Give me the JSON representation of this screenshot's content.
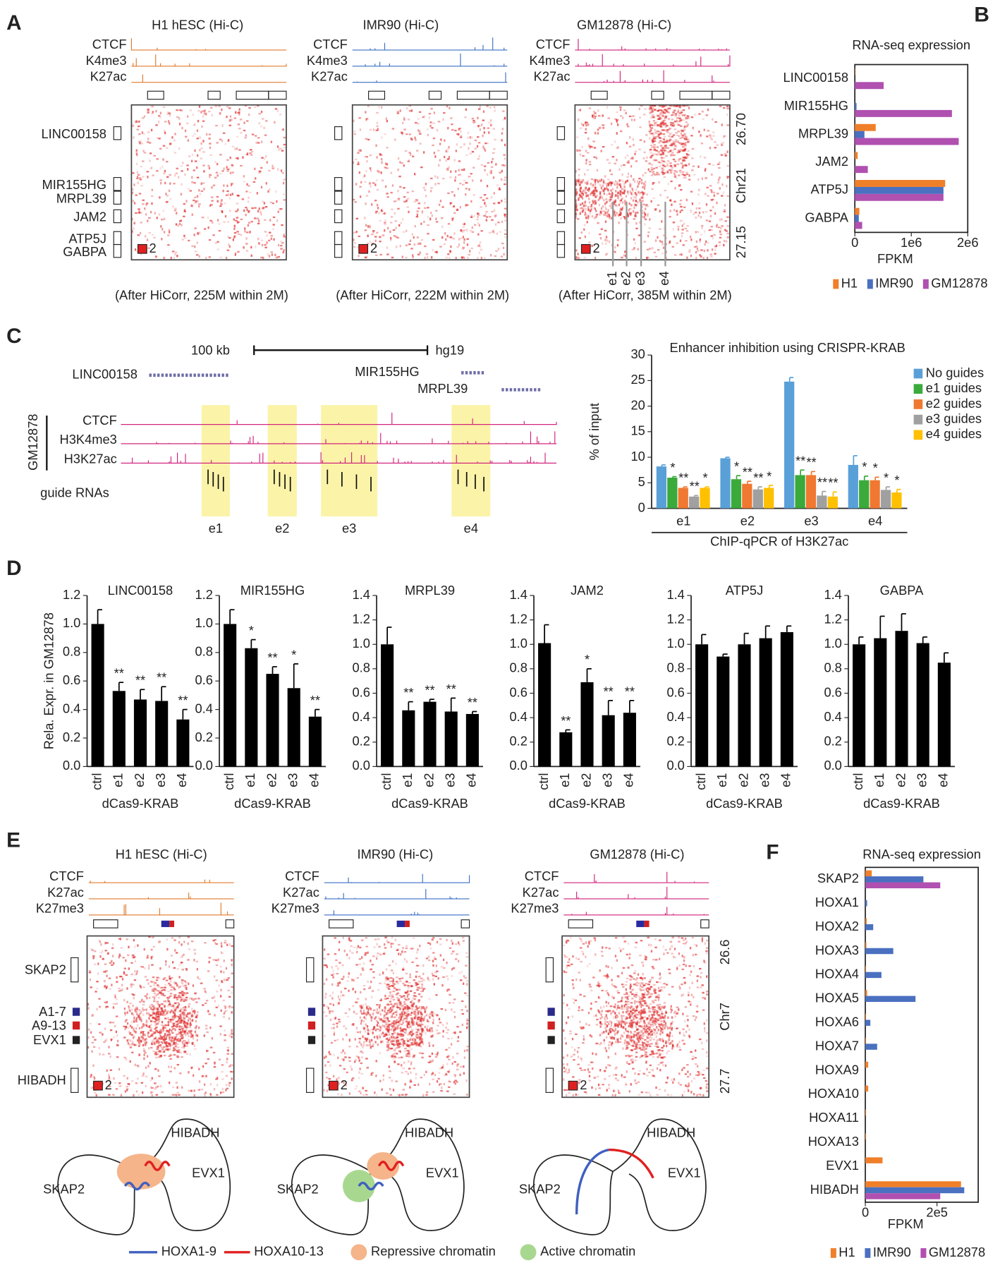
{
  "panel_labels": [
    "A",
    "B",
    "C",
    "D",
    "E",
    "F"
  ],
  "panel_a": {
    "maps": [
      {
        "title": "H1 hESC (Hi-C)",
        "color": "#e07a2c",
        "caption": "(After HiCorr, 225M within 2M)"
      },
      {
        "title": "IMR90 (Hi-C)",
        "color": "#3b6fc4",
        "caption": "(After HiCorr, 222M within 2M)"
      },
      {
        "title": "GM12878 (Hi-C)",
        "color": "#d2227c",
        "caption": "(After HiCorr, 385M within 2M)"
      }
    ],
    "tracks": [
      "CTCF",
      "K4me3",
      "K27ac"
    ],
    "genes": [
      "LINC00158",
      "MIR155HG",
      "MRPL39",
      "JAM2",
      "ATP5J",
      "GABPA"
    ],
    "scale": "2",
    "coords": [
      "26.70",
      "Chr21",
      "27.15"
    ],
    "enhancers": [
      "e1",
      "e2",
      "e3",
      "e4"
    ]
  },
  "panel_c": {
    "scale_bar": "100 kb",
    "assembly": "hg19",
    "genes": [
      "LINC00158",
      "MIR155HG",
      "MRPL39"
    ],
    "cell": "GM12878",
    "tracks": [
      "CTCF",
      "H3K4me3",
      "H3K27ac"
    ],
    "guides": "guide RNAs",
    "enhancers": [
      "e1",
      "e2",
      "e3",
      "e4"
    ]
  },
  "panel_e": {
    "maps": [
      {
        "title": "H1 hESC (Hi-C)",
        "color": "#e07a2c"
      },
      {
        "title": "IMR90 (Hi-C)",
        "color": "#3b6fc4"
      },
      {
        "title": "GM12878 (Hi-C)",
        "color": "#d2227c"
      }
    ],
    "tracks": [
      "CTCF",
      "K27ac",
      "K27me3"
    ],
    "genes": [
      "SKAP2",
      "A1-7",
      "A9-13",
      "EVX1",
      "HIBADH"
    ],
    "scale": "2",
    "coords": [
      "26.6",
      "Chr7",
      "27.7"
    ],
    "models": [
      [
        "HIBADH",
        "EVX1",
        "SKAP2"
      ],
      [
        "HIBADH",
        "EVX1",
        "SKAP2"
      ],
      [
        "HIBADH",
        "EVX1",
        "SKAP2"
      ]
    ],
    "legend": [
      "HOXA1-9",
      "HOXA10-13",
      "Repressive chromatin",
      "Active chromatin"
    ]
  },
  "chart_data": [
    {
      "type": "bar",
      "horizontal": true,
      "title": "RNA-seq expression",
      "xlabel": "FPKM",
      "categories": [
        "LINC00158",
        "MIR155HG",
        "MRPL39",
        "JAM2",
        "ATP5J",
        "GABPA"
      ],
      "series": [
        {
          "name": "H1",
          "color": "#f07f2a",
          "values": [
            5000,
            0,
            370000,
            50000,
            1600000,
            80000
          ]
        },
        {
          "name": "IMR90",
          "color": "#4a70c0",
          "values": [
            0,
            30000,
            170000,
            0,
            1570000,
            70000
          ]
        },
        {
          "name": "GM12878",
          "color": "#b050b0",
          "values": [
            510000,
            1720000,
            1840000,
            230000,
            1570000,
            130000
          ]
        }
      ],
      "xlim": [
        0,
        2000000
      ],
      "xticks": [
        0,
        {
          "value": 1000000,
          "label": "1e6"
        },
        {
          "value": 2000000,
          "label": "2e6"
        }
      ],
      "legend": "bottom"
    },
    {
      "type": "bar",
      "title": "Enhancer inhibition using CRISPR-KRAB",
      "ylabel": "% of input",
      "xlabel": "ChIP-qPCR of H3K27ac",
      "categories": [
        "e1",
        "e2",
        "e3",
        "e4"
      ],
      "series": [
        {
          "name": "No guides",
          "color": "#5aa0d8",
          "values": [
            8.2,
            9.8,
            24.8,
            8.5
          ],
          "errors": [
            0.3,
            0.2,
            0.8,
            1.8
          ],
          "annotations": [
            null,
            null,
            null,
            null
          ]
        },
        {
          "name": "e1 guides",
          "color": "#3aaa3a",
          "values": [
            6.0,
            5.7,
            6.5,
            5.5
          ],
          "errors": [
            0.2,
            0.7,
            1.0,
            0.8
          ],
          "annotations": [
            "*",
            "*",
            "**",
            "*"
          ]
        },
        {
          "name": "e2 guides",
          "color": "#f07830",
          "values": [
            4.0,
            4.8,
            6.5,
            5.5
          ],
          "errors": [
            0.2,
            0.5,
            0.7,
            0.6
          ],
          "annotations": [
            "**",
            "**",
            "**",
            "*"
          ]
        },
        {
          "name": "e3 guides",
          "color": "#a0a0a0",
          "values": [
            2.3,
            3.7,
            2.5,
            3.6
          ],
          "errors": [
            0.2,
            0.5,
            0.8,
            0.6
          ],
          "annotations": [
            "**",
            "**",
            "**",
            "*"
          ]
        },
        {
          "name": "e4 guides",
          "color": "#ffc000",
          "values": [
            4.0,
            4.0,
            2.3,
            3.1
          ],
          "errors": [
            0.2,
            0.5,
            0.9,
            0.6
          ],
          "annotations": [
            "*",
            "*",
            "**",
            "*"
          ]
        }
      ],
      "ylim": [
        0,
        30
      ],
      "yticks": [
        0,
        5,
        10,
        15,
        20,
        25,
        30
      ],
      "legend": "top-right"
    },
    {
      "type": "bar",
      "title": "LINC00158",
      "ylabel": "Rela. Expr. in GM12878",
      "xlabel": "dCas9-KRAB",
      "categories": [
        "ctrl",
        "e1",
        "e2",
        "e3",
        "e4"
      ],
      "color": "#000000",
      "values": [
        1.0,
        0.53,
        0.47,
        0.46,
        0.33
      ],
      "errors": [
        0.1,
        0.06,
        0.07,
        0.1,
        0.07
      ],
      "annotations": [
        null,
        "**",
        "**",
        "**",
        "**"
      ],
      "ylim": [
        0,
        1.2
      ],
      "yticks": [
        {
          "value": 0,
          "label": "0.0"
        },
        0.2,
        0.4,
        0.6,
        0.8,
        {
          "value": 1,
          "label": "1.0"
        },
        1.2
      ]
    },
    {
      "type": "bar",
      "title": "MIR155HG",
      "xlabel": "dCas9-KRAB",
      "categories": [
        "ctrl",
        "e1",
        "e2",
        "e3",
        "e4"
      ],
      "color": "#000000",
      "values": [
        1.0,
        0.83,
        0.65,
        0.55,
        0.35
      ],
      "errors": [
        0.1,
        0.06,
        0.05,
        0.17,
        0.05
      ],
      "annotations": [
        null,
        "*",
        "**",
        "*",
        "**"
      ],
      "ylim": [
        0,
        1.2
      ],
      "yticks": [
        {
          "value": 0,
          "label": "0.0"
        },
        0.2,
        0.4,
        0.6,
        0.8,
        {
          "value": 1,
          "label": "1.0"
        },
        1.2
      ]
    },
    {
      "type": "bar",
      "title": "MRPL39",
      "xlabel": "dCas9-KRAB",
      "categories": [
        "ctrl",
        "e1",
        "e2",
        "e3",
        "e4"
      ],
      "color": "#000000",
      "values": [
        1.0,
        0.46,
        0.53,
        0.45,
        0.43
      ],
      "errors": [
        0.14,
        0.07,
        0.02,
        0.11,
        0.02
      ],
      "annotations": [
        null,
        "**",
        "**",
        "**",
        "**"
      ],
      "ylim": [
        0,
        1.4
      ],
      "yticks": [
        {
          "value": 0,
          "label": "0.0"
        },
        0.2,
        0.4,
        0.6,
        0.8,
        {
          "value": 1,
          "label": "1.0"
        },
        1.2,
        1.4
      ]
    },
    {
      "type": "bar",
      "title": "JAM2",
      "xlabel": "dCas9-KRAB",
      "categories": [
        "ctrl",
        "e1",
        "e2",
        "e3",
        "e4"
      ],
      "color": "#000000",
      "values": [
        1.01,
        0.28,
        0.69,
        0.42,
        0.44
      ],
      "errors": [
        0.15,
        0.02,
        0.11,
        0.12,
        0.1
      ],
      "annotations": [
        null,
        "**",
        "*",
        "**",
        "**"
      ],
      "ylim": [
        0,
        1.4
      ],
      "yticks": [
        {
          "value": 0,
          "label": "0.0"
        },
        0.2,
        0.4,
        0.6,
        0.8,
        {
          "value": 1,
          "label": "1.0"
        },
        1.2,
        1.4
      ]
    },
    {
      "type": "bar",
      "title": "ATP5J",
      "xlabel": "dCas9-KRAB",
      "categories": [
        "ctrl",
        "e1",
        "e2",
        "e3",
        "e4"
      ],
      "color": "#000000",
      "values": [
        1.0,
        0.9,
        1.0,
        1.05,
        1.1
      ],
      "errors": [
        0.08,
        0.02,
        0.09,
        0.1,
        0.05
      ],
      "ylim": [
        0,
        1.4
      ],
      "yticks": [
        {
          "value": 0,
          "label": "0.0"
        },
        0.2,
        0.4,
        0.6,
        0.8,
        {
          "value": 1,
          "label": "1.0"
        },
        1.2,
        1.4
      ]
    },
    {
      "type": "bar",
      "title": "GABPA",
      "xlabel": "dCas9-KRAB",
      "categories": [
        "ctrl",
        "e1",
        "e2",
        "e3",
        "e4"
      ],
      "color": "#000000",
      "values": [
        1.0,
        1.05,
        1.11,
        1.01,
        0.85
      ],
      "errors": [
        0.06,
        0.18,
        0.14,
        0.05,
        0.08
      ],
      "ylim": [
        0,
        1.4
      ],
      "yticks": [
        {
          "value": 0,
          "label": "0.0"
        },
        0.2,
        0.4,
        0.6,
        0.8,
        {
          "value": 1,
          "label": "1.0"
        },
        1.2,
        1.4
      ]
    },
    {
      "type": "bar",
      "horizontal": true,
      "title": "RNA-seq expression",
      "xlabel": "FPKM",
      "categories": [
        "SKAP2",
        "HOXA1",
        "HOXA2",
        "HOXA3",
        "HOXA4",
        "HOXA5",
        "HOXA6",
        "HOXA7",
        "HOXA9",
        "HOXA10",
        "HOXA11",
        "HOXA13",
        "EVX1",
        "HIBADH"
      ],
      "series": [
        {
          "name": "H1",
          "color": "#f07f2a",
          "values": [
            18000,
            0,
            4000,
            3000,
            2000,
            5000,
            2000,
            2000,
            8000,
            8000,
            2000,
            2000,
            48000,
            267000
          ]
        },
        {
          "name": "IMR90",
          "color": "#4a70c0",
          "values": [
            162000,
            5000,
            22000,
            78000,
            45000,
            140000,
            14000,
            33000,
            0,
            0,
            0,
            0,
            0,
            276000
          ]
        },
        {
          "name": "GM12878",
          "color": "#b050b0",
          "values": [
            209000,
            0,
            0,
            0,
            0,
            0,
            0,
            0,
            0,
            0,
            0,
            0,
            0,
            209000
          ]
        }
      ],
      "xlim": [
        0,
        315000
      ],
      "xticks": [
        0,
        {
          "value": 200000,
          "label": "2e5"
        }
      ],
      "legend": "bottom"
    }
  ]
}
